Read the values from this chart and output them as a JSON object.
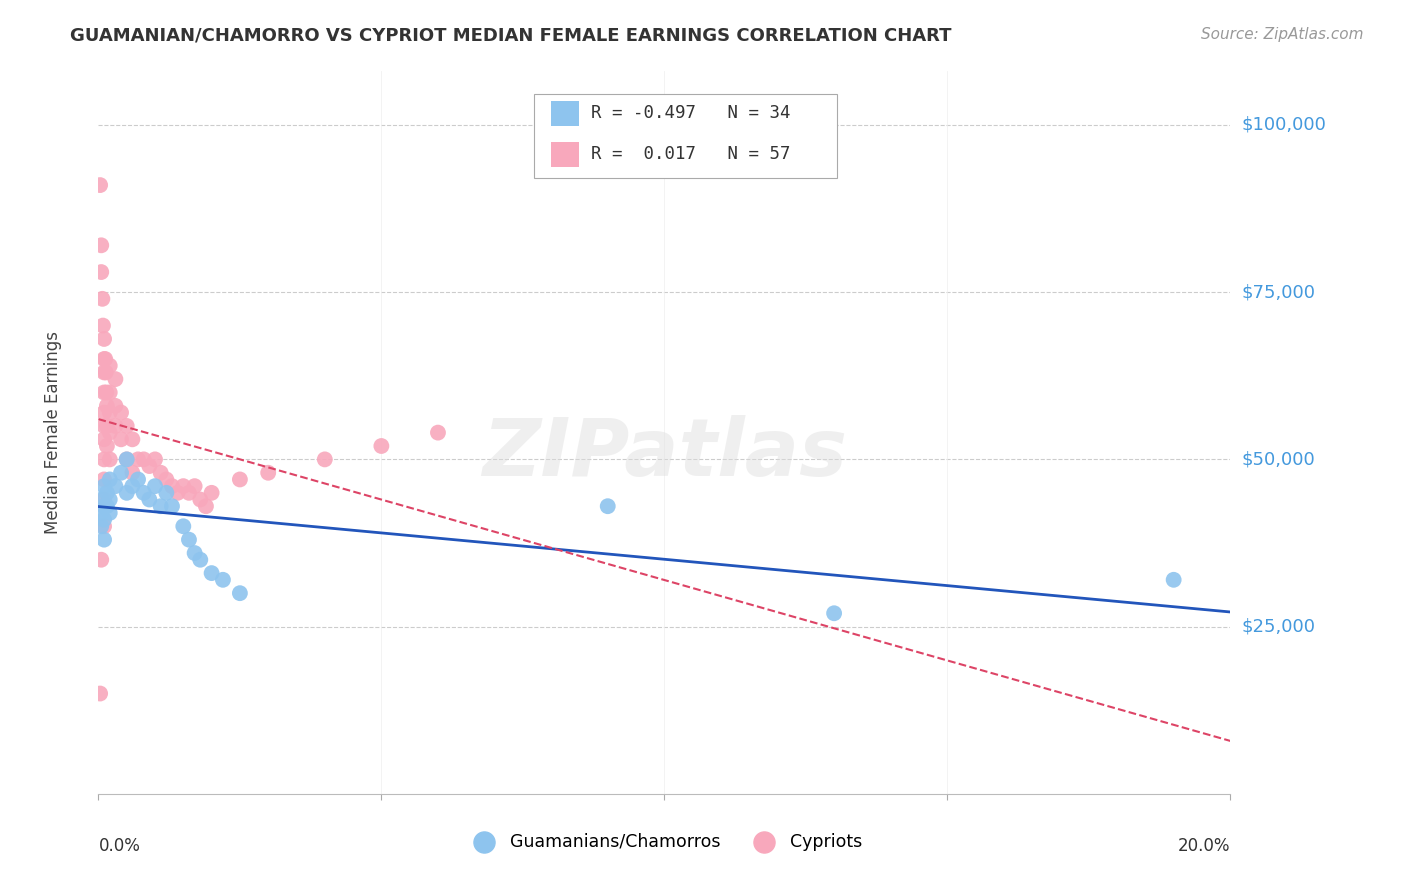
{
  "title": "GUAMANIAN/CHAMORRO VS CYPRIOT MEDIAN FEMALE EARNINGS CORRELATION CHART",
  "source": "Source: ZipAtlas.com",
  "ylabel": "Median Female Earnings",
  "yticks": [
    0,
    25000,
    50000,
    75000,
    100000
  ],
  "ytick_labels": [
    "",
    "$25,000",
    "$50,000",
    "$75,000",
    "$100,000"
  ],
  "xlim": [
    0.0,
    0.2
  ],
  "ylim": [
    0,
    108000
  ],
  "watermark": "ZIPatlas",
  "guamanian_R": "-0.497",
  "guamanian_N": "34",
  "cypriot_R": "0.017",
  "cypriot_N": "57",
  "guamanian_color": "#8EC4EE",
  "cypriot_color": "#F8A8BC",
  "trend_guamanian_color": "#2255BB",
  "trend_cypriot_color": "#DD4466",
  "guamanian_x": [
    0.0005,
    0.0005,
    0.0005,
    0.001,
    0.001,
    0.001,
    0.001,
    0.0015,
    0.0015,
    0.002,
    0.002,
    0.002,
    0.003,
    0.004,
    0.005,
    0.005,
    0.006,
    0.007,
    0.008,
    0.009,
    0.01,
    0.011,
    0.012,
    0.013,
    0.015,
    0.016,
    0.017,
    0.018,
    0.02,
    0.022,
    0.025,
    0.09,
    0.13,
    0.19
  ],
  "guamanian_y": [
    44000,
    42000,
    40000,
    46000,
    43000,
    41000,
    38000,
    45000,
    43000,
    47000,
    44000,
    42000,
    46000,
    48000,
    50000,
    45000,
    46000,
    47000,
    45000,
    44000,
    46000,
    43000,
    45000,
    43000,
    40000,
    38000,
    36000,
    35000,
    33000,
    32000,
    30000,
    43000,
    27000,
    32000
  ],
  "cypriot_x": [
    0.0003,
    0.0003,
    0.0005,
    0.0005,
    0.0005,
    0.0007,
    0.0008,
    0.001,
    0.001,
    0.001,
    0.001,
    0.001,
    0.001,
    0.001,
    0.001,
    0.001,
    0.001,
    0.001,
    0.0012,
    0.0013,
    0.0014,
    0.0015,
    0.0015,
    0.0015,
    0.002,
    0.002,
    0.002,
    0.002,
    0.002,
    0.003,
    0.003,
    0.003,
    0.004,
    0.004,
    0.005,
    0.005,
    0.006,
    0.006,
    0.007,
    0.008,
    0.009,
    0.01,
    0.011,
    0.012,
    0.013,
    0.014,
    0.015,
    0.016,
    0.017,
    0.018,
    0.019,
    0.02,
    0.025,
    0.03,
    0.04,
    0.05,
    0.06
  ],
  "cypriot_y": [
    91000,
    15000,
    82000,
    78000,
    35000,
    74000,
    70000,
    68000,
    65000,
    63000,
    60000,
    57000,
    55000,
    53000,
    50000,
    47000,
    44000,
    40000,
    65000,
    63000,
    60000,
    58000,
    55000,
    52000,
    64000,
    60000,
    57000,
    54000,
    50000,
    62000,
    58000,
    55000,
    57000,
    53000,
    55000,
    50000,
    53000,
    48000,
    50000,
    50000,
    49000,
    50000,
    48000,
    47000,
    46000,
    45000,
    46000,
    45000,
    46000,
    44000,
    43000,
    45000,
    47000,
    48000,
    50000,
    52000,
    54000
  ]
}
